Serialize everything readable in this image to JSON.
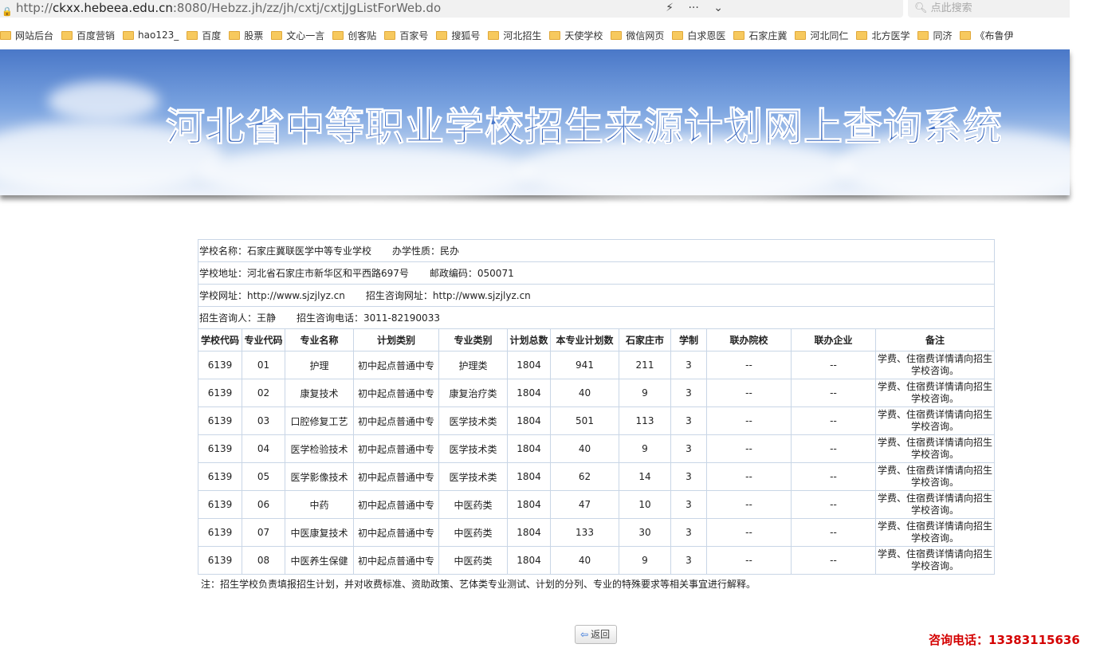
{
  "browser": {
    "url_prefix": "http://",
    "url_domain": "ckxx.hebeea.edu.cn",
    "url_rest": ":8080/Hebzz.jh/zz/jh/cxtj/cxtjJgListForWeb.do",
    "search_placeholder": "点此搜索",
    "bookmarks": [
      "网站后台",
      "百度营销",
      "hao123_",
      "百度",
      "股票",
      "文心一言",
      "创客贴",
      "百家号",
      "搜狐号",
      "河北招生",
      "天使学校",
      "微信网页",
      "白求恩医",
      "石家庄冀",
      "河北同仁",
      "北方医学",
      "同济",
      "《布鲁伊"
    ]
  },
  "banner": {
    "title": "河北省中等职业学校招生来源计划网上查询系统"
  },
  "school": {
    "name": "学校名称：石家庄冀联医学中等专业学校",
    "nature": "办学性质：民办",
    "address": "学校地址：河北省石家庄市新华区和平西路697号",
    "postcode": "邮政编码：050071",
    "website": "学校网址：http://www.sjzjlyz.cn",
    "consult_site": "招生咨询网址：http://www.sjzjlyz.cn",
    "contact": "招生咨询人：王静",
    "phone": "招生咨询电话：3011-82190033"
  },
  "table": {
    "headers": [
      "学校代码",
      "专业代码",
      "专业名称",
      "计划类别",
      "专业类别",
      "计划总数",
      "本专业计划数",
      "石家庄市",
      "学制",
      "联办院校",
      "联办企业",
      "备注"
    ],
    "rows": [
      [
        "6139",
        "01",
        "护理",
        "初中起点普通中专",
        "护理类",
        "1804",
        "941",
        "211",
        "3",
        "--",
        "--",
        "学费、住宿费详情请向招生学校咨询。"
      ],
      [
        "6139",
        "02",
        "康复技术",
        "初中起点普通中专",
        "康复治疗类",
        "1804",
        "40",
        "9",
        "3",
        "--",
        "--",
        "学费、住宿费详情请向招生学校咨询。"
      ],
      [
        "6139",
        "03",
        "口腔修复工艺",
        "初中起点普通中专",
        "医学技术类",
        "1804",
        "501",
        "113",
        "3",
        "--",
        "--",
        "学费、住宿费详情请向招生学校咨询。"
      ],
      [
        "6139",
        "04",
        "医学检验技术",
        "初中起点普通中专",
        "医学技术类",
        "1804",
        "40",
        "9",
        "3",
        "--",
        "--",
        "学费、住宿费详情请向招生学校咨询。"
      ],
      [
        "6139",
        "05",
        "医学影像技术",
        "初中起点普通中专",
        "医学技术类",
        "1804",
        "62",
        "14",
        "3",
        "--",
        "--",
        "学费、住宿费详情请向招生学校咨询。"
      ],
      [
        "6139",
        "06",
        "中药",
        "初中起点普通中专",
        "中医药类",
        "1804",
        "47",
        "10",
        "3",
        "--",
        "--",
        "学费、住宿费详情请向招生学校咨询。"
      ],
      [
        "6139",
        "07",
        "中医康复技术",
        "初中起点普通中专",
        "中医药类",
        "1804",
        "133",
        "30",
        "3",
        "--",
        "--",
        "学费、住宿费详情请向招生学校咨询。"
      ],
      [
        "6139",
        "08",
        "中医养生保健",
        "初中起点普通中专",
        "中医药类",
        "1804",
        "40",
        "9",
        "3",
        "--",
        "--",
        "学费、住宿费详情请向招生学校咨询。"
      ]
    ]
  },
  "footnote": "注：招生学校负责填报招生计划，并对收费标准、资助政策、艺体类专业测试、计划的分列、专业的特殊要求等相关事宜进行解释。",
  "back_label": "返回",
  "watermark_phone": "咨询电话：13383115636"
}
